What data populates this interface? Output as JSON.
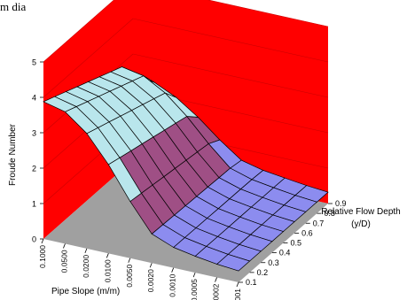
{
  "page": {
    "title_fragment": "m dia"
  },
  "chart_data": {
    "type": "surface",
    "zlabel": "Froude Number",
    "xlabel": "Pipe Slope (m/m)",
    "ylabel_line1": "Relative Flow Depth",
    "ylabel_line2": "(y/D)",
    "z_ticks": [
      "0",
      "1",
      "2",
      "3",
      "4",
      "5"
    ],
    "zlim": [
      0,
      5
    ],
    "slope_ticks": [
      "0.1000",
      "0.0500",
      "0.0200",
      "0.0100",
      "0.0050",
      "0.0020",
      "0.0010",
      "0.0005",
      "0.0002",
      "0.0001"
    ],
    "depth_ticks": [
      "0.1",
      "0.2",
      "0.3",
      "0.4",
      "0.5",
      "0.6",
      "0.7",
      "0.8",
      "0.9"
    ],
    "slope_values": [
      0.1,
      0.05,
      0.02,
      0.01,
      0.005,
      0.002,
      0.001,
      0.0005,
      0.0002,
      0.0001
    ],
    "depth_values": [
      0.1,
      0.2,
      0.3,
      0.4,
      0.5,
      0.6,
      0.7,
      0.8,
      0.9
    ],
    "band_colors": [
      "#8c8cef",
      "#9f4f85",
      "#b9e6ec",
      "#8f5db0"
    ],
    "band_edges": [
      1,
      2,
      4
    ],
    "colors": {
      "back_wall": "#ff0000",
      "floor": "#a0a0a0",
      "gridline": "#000000"
    },
    "note": ""
  }
}
